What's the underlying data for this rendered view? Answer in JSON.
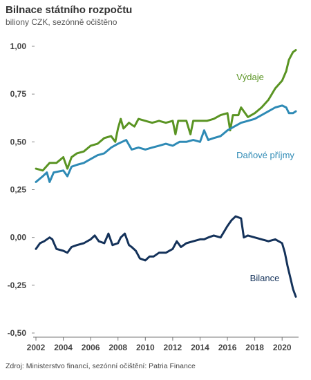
{
  "header": {
    "title": "Bilnace státního rozpočtu",
    "subtitle": "biliony CZK, sezónně očištěno"
  },
  "footer": {
    "source": "Zdroj: Ministerstvo financí, sezónní očištění: Patria Finance"
  },
  "colors": {
    "Výdaje": "#5a9423",
    "Daňové příjmy": "#2e8ab5",
    "Bilance": "#14325a"
  },
  "chart_data": {
    "type": "line",
    "title": "Bilnace státního rozpočtu",
    "subtitle": "biliony CZK, sezónně očištěno",
    "xlabel": "",
    "ylabel": "",
    "xlim": [
      2002,
      2021
    ],
    "ylim": [
      -0.5,
      1.0
    ],
    "x_ticks": [
      2002,
      2004,
      2006,
      2008,
      2010,
      2012,
      2014,
      2016,
      2018,
      2020
    ],
    "y_ticks": [
      {
        "value": 1.0,
        "label": "1,00"
      },
      {
        "value": 0.75,
        "label": "0,75"
      },
      {
        "value": 0.5,
        "label": "0,50"
      },
      {
        "value": 0.25,
        "label": "0,25"
      },
      {
        "value": 0.0,
        "label": "0,00"
      },
      {
        "value": -0.25,
        "label": "-0,25"
      },
      {
        "value": -0.5,
        "label": "-0,50"
      }
    ],
    "grid": false,
    "legend": "direct labels at line ends",
    "series": [
      {
        "name": "Výdaje",
        "points": [
          [
            2002.0,
            0.36
          ],
          [
            2002.5,
            0.35
          ],
          [
            2003.0,
            0.39
          ],
          [
            2003.5,
            0.39
          ],
          [
            2004.0,
            0.42
          ],
          [
            2004.3,
            0.36
          ],
          [
            2004.6,
            0.42
          ],
          [
            2005.0,
            0.44
          ],
          [
            2005.5,
            0.45
          ],
          [
            2006.0,
            0.48
          ],
          [
            2006.5,
            0.49
          ],
          [
            2007.0,
            0.52
          ],
          [
            2007.5,
            0.53
          ],
          [
            2007.8,
            0.5
          ],
          [
            2008.0,
            0.57
          ],
          [
            2008.2,
            0.62
          ],
          [
            2008.4,
            0.57
          ],
          [
            2008.8,
            0.6
          ],
          [
            2009.2,
            0.58
          ],
          [
            2009.5,
            0.62
          ],
          [
            2010.0,
            0.61
          ],
          [
            2010.5,
            0.6
          ],
          [
            2011.0,
            0.61
          ],
          [
            2011.5,
            0.6
          ],
          [
            2012.0,
            0.61
          ],
          [
            2012.2,
            0.54
          ],
          [
            2012.4,
            0.61
          ],
          [
            2013.0,
            0.61
          ],
          [
            2013.3,
            0.54
          ],
          [
            2013.5,
            0.61
          ],
          [
            2014.0,
            0.61
          ],
          [
            2014.5,
            0.61
          ],
          [
            2015.0,
            0.62
          ],
          [
            2015.5,
            0.64
          ],
          [
            2016.0,
            0.65
          ],
          [
            2016.2,
            0.56
          ],
          [
            2016.4,
            0.64
          ],
          [
            2016.8,
            0.64
          ],
          [
            2017.0,
            0.68
          ],
          [
            2017.5,
            0.63
          ],
          [
            2018.0,
            0.65
          ],
          [
            2018.5,
            0.68
          ],
          [
            2019.0,
            0.72
          ],
          [
            2019.5,
            0.78
          ],
          [
            2020.0,
            0.82
          ],
          [
            2020.3,
            0.87
          ],
          [
            2020.5,
            0.93
          ],
          [
            2020.8,
            0.97
          ],
          [
            2021.0,
            0.98
          ]
        ]
      },
      {
        "name": "Daňové příjmy",
        "points": [
          [
            2002.0,
            0.29
          ],
          [
            2002.5,
            0.32
          ],
          [
            2002.8,
            0.34
          ],
          [
            2003.0,
            0.29
          ],
          [
            2003.3,
            0.34
          ],
          [
            2004.0,
            0.35
          ],
          [
            2004.3,
            0.32
          ],
          [
            2004.6,
            0.37
          ],
          [
            2005.0,
            0.38
          ],
          [
            2005.5,
            0.39
          ],
          [
            2006.0,
            0.41
          ],
          [
            2006.5,
            0.43
          ],
          [
            2007.0,
            0.44
          ],
          [
            2007.5,
            0.47
          ],
          [
            2008.0,
            0.49
          ],
          [
            2008.3,
            0.5
          ],
          [
            2008.6,
            0.51
          ],
          [
            2009.0,
            0.46
          ],
          [
            2009.5,
            0.47
          ],
          [
            2010.0,
            0.46
          ],
          [
            2010.5,
            0.47
          ],
          [
            2011.0,
            0.48
          ],
          [
            2011.5,
            0.49
          ],
          [
            2012.0,
            0.48
          ],
          [
            2012.5,
            0.5
          ],
          [
            2013.0,
            0.5
          ],
          [
            2013.5,
            0.51
          ],
          [
            2014.0,
            0.5
          ],
          [
            2014.3,
            0.56
          ],
          [
            2014.6,
            0.51
          ],
          [
            2015.0,
            0.52
          ],
          [
            2015.5,
            0.53
          ],
          [
            2016.0,
            0.56
          ],
          [
            2016.5,
            0.58
          ],
          [
            2017.0,
            0.6
          ],
          [
            2017.5,
            0.61
          ],
          [
            2018.0,
            0.62
          ],
          [
            2018.5,
            0.64
          ],
          [
            2019.0,
            0.66
          ],
          [
            2019.5,
            0.68
          ],
          [
            2020.0,
            0.69
          ],
          [
            2020.3,
            0.68
          ],
          [
            2020.5,
            0.65
          ],
          [
            2020.8,
            0.65
          ],
          [
            2021.0,
            0.66
          ]
        ]
      },
      {
        "name": "Bilance",
        "points": [
          [
            2002.0,
            -0.06
          ],
          [
            2002.3,
            -0.03
          ],
          [
            2002.6,
            -0.02
          ],
          [
            2003.0,
            0.0
          ],
          [
            2003.2,
            -0.01
          ],
          [
            2003.5,
            -0.06
          ],
          [
            2004.0,
            -0.07
          ],
          [
            2004.3,
            -0.08
          ],
          [
            2004.6,
            -0.05
          ],
          [
            2005.0,
            -0.04
          ],
          [
            2005.5,
            -0.03
          ],
          [
            2006.0,
            -0.01
          ],
          [
            2006.3,
            0.01
          ],
          [
            2006.6,
            -0.02
          ],
          [
            2007.0,
            -0.03
          ],
          [
            2007.3,
            0.02
          ],
          [
            2007.6,
            -0.04
          ],
          [
            2008.0,
            -0.03
          ],
          [
            2008.2,
            0.0
          ],
          [
            2008.5,
            0.02
          ],
          [
            2008.8,
            -0.04
          ],
          [
            2009.0,
            -0.05
          ],
          [
            2009.3,
            -0.07
          ],
          [
            2009.6,
            -0.11
          ],
          [
            2010.0,
            -0.12
          ],
          [
            2010.3,
            -0.1
          ],
          [
            2010.6,
            -0.1
          ],
          [
            2011.0,
            -0.08
          ],
          [
            2011.5,
            -0.08
          ],
          [
            2012.0,
            -0.06
          ],
          [
            2012.3,
            -0.02
          ],
          [
            2012.6,
            -0.05
          ],
          [
            2013.0,
            -0.03
          ],
          [
            2013.5,
            -0.02
          ],
          [
            2014.0,
            -0.01
          ],
          [
            2014.3,
            -0.01
          ],
          [
            2014.6,
            0.0
          ],
          [
            2015.0,
            0.01
          ],
          [
            2015.5,
            0.0
          ],
          [
            2016.0,
            0.06
          ],
          [
            2016.3,
            0.09
          ],
          [
            2016.6,
            0.11
          ],
          [
            2017.0,
            0.1
          ],
          [
            2017.2,
            0.0
          ],
          [
            2017.5,
            0.01
          ],
          [
            2018.0,
            0.0
          ],
          [
            2018.5,
            -0.01
          ],
          [
            2019.0,
            -0.02
          ],
          [
            2019.5,
            -0.01
          ],
          [
            2020.0,
            -0.03
          ],
          [
            2020.2,
            -0.08
          ],
          [
            2020.4,
            -0.15
          ],
          [
            2020.6,
            -0.21
          ],
          [
            2020.8,
            -0.27
          ],
          [
            2021.0,
            -0.31
          ]
        ]
      }
    ]
  }
}
